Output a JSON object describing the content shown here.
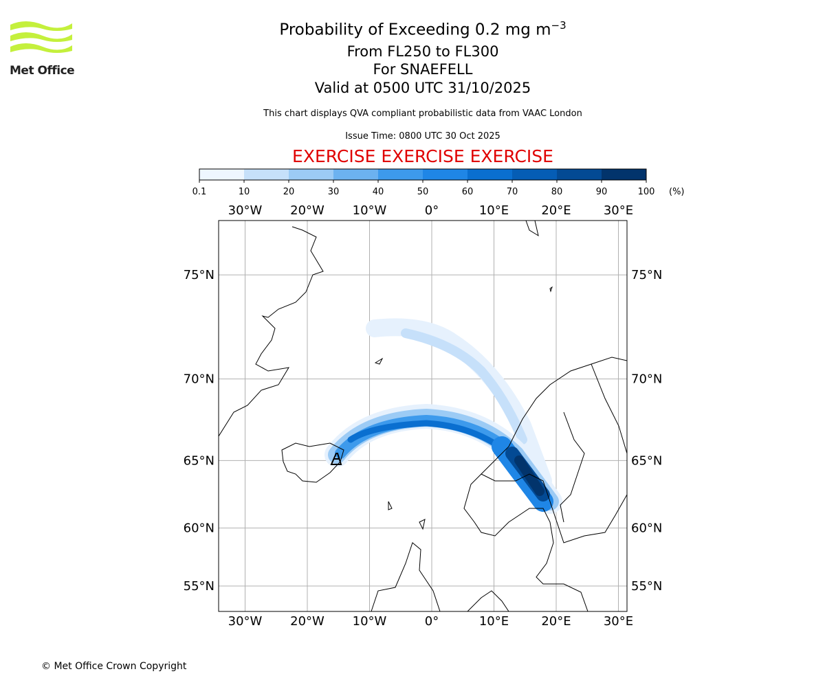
{
  "logo": {
    "text": "Met Office"
  },
  "title": {
    "main": "Probability of Exceeding 0.2 mg m",
    "superscript": "−3",
    "lines": [
      "From FL250 to FL300",
      "For SNAEFELL",
      "Valid at 0500 UTC 31/10/2025"
    ]
  },
  "subtitle": "This chart displays QVA compliant probabilistic data from VAAC London",
  "issue_time": "Issue Time: 0800 UTC 30 Oct 2025",
  "exercise": "EXERCISE EXERCISE EXERCISE",
  "colorbar": {
    "ticks": [
      0.1,
      10,
      20,
      30,
      40,
      50,
      60,
      70,
      80,
      90,
      100
    ],
    "unit": "(%)",
    "colors": [
      "#eef6ff",
      "#c6e0fa",
      "#9ccbf5",
      "#6cb2f0",
      "#3d9aec",
      "#1f86e6",
      "#0a6fd0",
      "#055db5",
      "#034a94",
      "#02346c"
    ]
  },
  "map": {
    "lon_lines": [
      {
        "value": -30,
        "label": "30°W"
      },
      {
        "value": -20,
        "label": "20°W"
      },
      {
        "value": -10,
        "label": "10°W"
      },
      {
        "value": 0,
        "label": "0°"
      },
      {
        "value": 10,
        "label": "10°E"
      },
      {
        "value": 20,
        "label": "20°E"
      },
      {
        "value": 30,
        "label": "30°E"
      }
    ],
    "lat_lines": [
      {
        "value": 75,
        "label": "75°N"
      },
      {
        "value": 70,
        "label": "70°N"
      },
      {
        "value": 65,
        "label": "65°N"
      },
      {
        "value": 60,
        "label": "60°N"
      },
      {
        "value": 55,
        "label": "55°N"
      }
    ]
  },
  "copyright": "© Met Office Crown Copyright"
}
